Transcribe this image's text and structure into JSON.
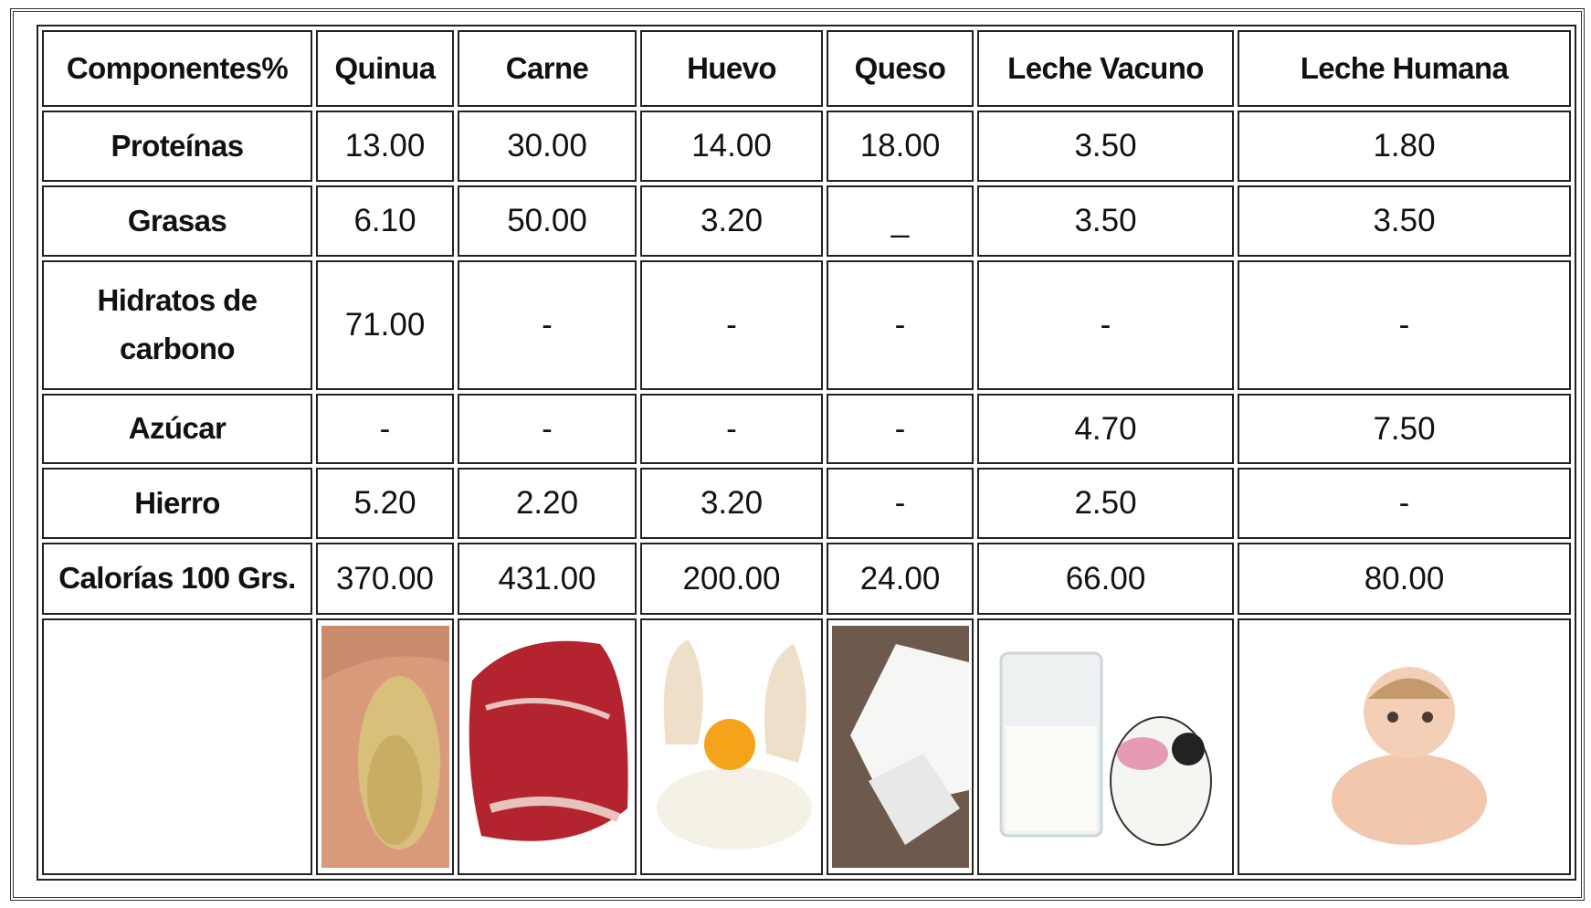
{
  "table": {
    "header": [
      "Componentes%",
      "Quinua",
      "Carne",
      "Huevo",
      "Queso",
      "Leche Vacuno",
      "Leche Humana"
    ],
    "rows": [
      [
        "Proteínas",
        "13.00",
        "30.00",
        "14.00",
        "18.00",
        "3.50",
        "1.80"
      ],
      [
        "Grasas",
        "6.10",
        "50.00",
        "3.20",
        "_",
        "3.50",
        "3.50"
      ],
      [
        "Hidratos de carbono",
        "71.00",
        "-",
        "-",
        "-",
        "-",
        "-"
      ],
      [
        "Azúcar",
        "-",
        "-",
        "-",
        "-",
        "4.70",
        "7.50"
      ],
      [
        "Hierro",
        "5.20",
        "2.20",
        "3.20",
        "-",
        "2.50",
        "-"
      ],
      [
        "Calorías 100 Grs.",
        "370.00",
        "431.00",
        "200.00",
        "24.00",
        "66.00",
        "80.00"
      ]
    ]
  }
}
